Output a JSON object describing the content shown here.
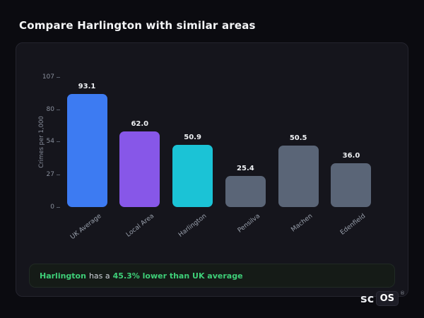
{
  "header": {
    "title": "Compare Harlington with similar areas"
  },
  "chart_data": {
    "type": "bar",
    "title": "",
    "xlabel": "",
    "ylabel": "Crimes per 1,000",
    "categories": [
      "UK Average",
      "Local Area",
      "Harlington",
      "Pensilva",
      "Machen",
      "Edenfield"
    ],
    "values": [
      93.1,
      62.0,
      50.9,
      25.4,
      50.5,
      36.0
    ],
    "value_labels": [
      "93.1",
      "62.0",
      "50.9",
      "25.4",
      "50.5",
      "36.0"
    ],
    "bar_colors": [
      "#3d7bf2",
      "#8757e8",
      "#1bc3d6",
      "#5a6577",
      "#5a6577",
      "#5a6577"
    ],
    "yticks": [
      107,
      80,
      54,
      27,
      0
    ],
    "ylim": [
      0,
      107
    ],
    "grid": false,
    "legend": null
  },
  "note": {
    "area": "Harlington",
    "connector": "has a",
    "stat": "45.3% lower than UK average"
  },
  "logo": {
    "prefix": "sc",
    "badge": "OS",
    "registered": "®"
  },
  "colors": {
    "accent_green": "#3ecf78",
    "page_background": "#0b0b10",
    "card_background": "#15151c"
  }
}
